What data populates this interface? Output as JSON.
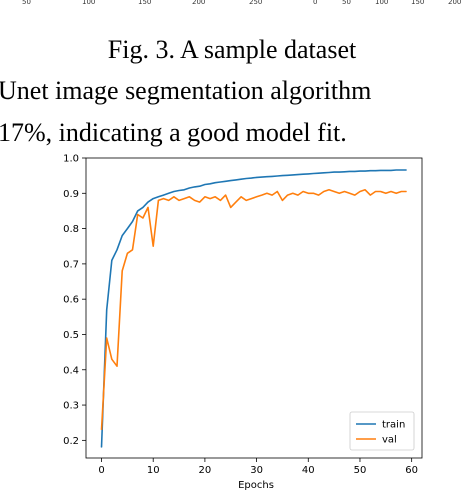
{
  "top_ticks": [
    "50",
    "100",
    "150",
    "200",
    "250",
    "0",
    "50",
    "100",
    "150",
    "200"
  ],
  "caption": "Fig. 3. A sample dataset",
  "body_lines": [
    "Unet image segmentation algorithm",
    "17%, indicating a good model fit."
  ],
  "chart_data": {
    "type": "line",
    "title": "",
    "xlabel": "Epochs",
    "ylabel": "",
    "xlim": [
      -3,
      62
    ],
    "ylim": [
      0.15,
      1.0
    ],
    "xticks": [
      0,
      10,
      20,
      30,
      40,
      50,
      60
    ],
    "yticks": [
      0.2,
      0.3,
      0.4,
      0.5,
      0.6,
      0.7,
      0.8,
      0.9,
      1.0
    ],
    "ytick_labels": [
      "0.2",
      "0.3",
      "0.4",
      "0.5",
      "0.6",
      "0.7",
      "0.8",
      "0.9",
      "1.0"
    ],
    "grid": false,
    "legend_position": "lower-right",
    "series": [
      {
        "name": "train",
        "color": "#1f77b4",
        "x": [
          0,
          1,
          2,
          3,
          4,
          5,
          6,
          7,
          8,
          9,
          10,
          11,
          12,
          13,
          14,
          15,
          16,
          17,
          18,
          19,
          20,
          21,
          22,
          23,
          24,
          25,
          26,
          27,
          28,
          29,
          30,
          31,
          32,
          33,
          34,
          35,
          36,
          37,
          38,
          39,
          40,
          41,
          42,
          43,
          44,
          45,
          46,
          47,
          48,
          49,
          50,
          51,
          52,
          53,
          54,
          55,
          56,
          57,
          58,
          59
        ],
        "values": [
          0.18,
          0.57,
          0.71,
          0.74,
          0.78,
          0.8,
          0.82,
          0.85,
          0.86,
          0.875,
          0.885,
          0.89,
          0.895,
          0.9,
          0.905,
          0.908,
          0.91,
          0.915,
          0.918,
          0.92,
          0.925,
          0.927,
          0.93,
          0.932,
          0.934,
          0.936,
          0.938,
          0.94,
          0.942,
          0.943,
          0.945,
          0.946,
          0.947,
          0.948,
          0.949,
          0.95,
          0.951,
          0.952,
          0.953,
          0.954,
          0.955,
          0.956,
          0.957,
          0.958,
          0.959,
          0.96,
          0.96,
          0.961,
          0.962,
          0.962,
          0.963,
          0.963,
          0.964,
          0.964,
          0.965,
          0.965,
          0.965,
          0.966,
          0.966,
          0.966
        ]
      },
      {
        "name": "val",
        "color": "#ff7f0e",
        "x": [
          0,
          1,
          2,
          3,
          4,
          5,
          6,
          7,
          8,
          9,
          10,
          11,
          12,
          13,
          14,
          15,
          16,
          17,
          18,
          19,
          20,
          21,
          22,
          23,
          24,
          25,
          26,
          27,
          28,
          29,
          30,
          31,
          32,
          33,
          34,
          35,
          36,
          37,
          38,
          39,
          40,
          41,
          42,
          43,
          44,
          45,
          46,
          47,
          48,
          49,
          50,
          51,
          52,
          53,
          54,
          55,
          56,
          57,
          58,
          59
        ],
        "values": [
          0.23,
          0.49,
          0.43,
          0.41,
          0.68,
          0.73,
          0.74,
          0.84,
          0.83,
          0.86,
          0.75,
          0.88,
          0.885,
          0.88,
          0.89,
          0.88,
          0.885,
          0.89,
          0.88,
          0.875,
          0.89,
          0.885,
          0.89,
          0.88,
          0.895,
          0.86,
          0.875,
          0.89,
          0.88,
          0.885,
          0.89,
          0.895,
          0.9,
          0.895,
          0.905,
          0.88,
          0.895,
          0.9,
          0.895,
          0.905,
          0.9,
          0.9,
          0.895,
          0.905,
          0.91,
          0.905,
          0.9,
          0.905,
          0.9,
          0.895,
          0.905,
          0.91,
          0.895,
          0.905,
          0.905,
          0.9,
          0.905,
          0.9,
          0.905,
          0.905
        ]
      }
    ]
  }
}
